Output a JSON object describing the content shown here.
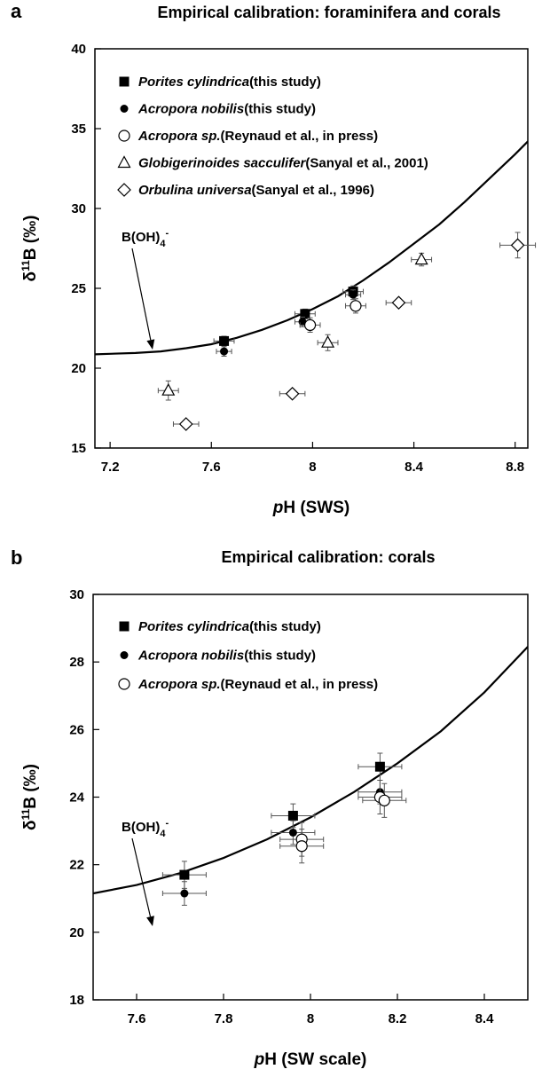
{
  "chart_data": [
    {
      "type": "scatter",
      "panel": "a",
      "title": "Empirical calibration: foraminifera and corals",
      "xlabel": [
        "p",
        "H (SWS)"
      ],
      "ylabel": [
        "δ",
        "11",
        "B (‰)"
      ],
      "xlim": [
        7.14,
        8.85
      ],
      "ylim": [
        15,
        40
      ],
      "xticks": [
        7.2,
        7.6,
        8,
        8.4,
        8.8
      ],
      "yticks": [
        15,
        20,
        25,
        30,
        35,
        40
      ],
      "series": [
        {
          "name": "Porites cylindrica",
          "source": "(this study)",
          "marker": "square",
          "color": "#000000",
          "x": [
            7.65,
            7.97,
            8.16
          ],
          "y": [
            21.7,
            23.4,
            24.8
          ],
          "xerr": [
            0.04,
            0.04,
            0.04
          ],
          "yerr": [
            0.3,
            0.3,
            0.35
          ]
        },
        {
          "name": "Acropora nobilis",
          "source": "(this study)",
          "marker": "circle",
          "color": "#000000",
          "x": [
            7.65,
            7.96,
            8.16
          ],
          "y": [
            21.05,
            22.9,
            24.6
          ],
          "xerr": [
            0.03,
            0.03,
            0.03
          ],
          "yerr": [
            0.3,
            0.3,
            0.3
          ]
        },
        {
          "name": "Acropora sp.",
          "source": "(Reynaud et al., in press)",
          "marker": "open-circle",
          "color": "#000000",
          "x": [
            7.99,
            8.17
          ],
          "y": [
            22.7,
            23.9
          ],
          "xerr": [
            0.04,
            0.04
          ],
          "yerr": [
            0.45,
            0.45
          ]
        },
        {
          "name": "Globigerinoides sacculifer",
          "source": "(Sanyal et al., 2001)",
          "marker": "triangle",
          "color": "#000000",
          "x": [
            7.43,
            8.06,
            8.43
          ],
          "y": [
            18.6,
            21.6,
            26.8
          ],
          "xerr": [
            0.04,
            0.04,
            0.04
          ],
          "yerr": [
            0.6,
            0.5,
            0.4
          ]
        },
        {
          "name": "Orbulina universa",
          "source": "(Sanyal et al., 1996)",
          "marker": "diamond",
          "color": "#000000",
          "x": [
            7.5,
            7.92,
            8.34,
            8.81
          ],
          "y": [
            16.5,
            18.4,
            24.1,
            27.7
          ],
          "xerr": [
            0.05,
            0.05,
            0.05,
            0.07
          ],
          "yerr": [
            0.15,
            0.15,
            0.15,
            0.8
          ]
        }
      ],
      "curve": {
        "x": [
          7.1,
          7.2,
          7.3,
          7.4,
          7.5,
          7.6,
          7.7,
          7.8,
          7.9,
          8.0,
          8.1,
          8.2,
          8.3,
          8.4,
          8.5,
          8.6,
          8.7,
          8.8,
          8.9
        ],
        "y": [
          20.85,
          20.9,
          20.95,
          21.05,
          21.25,
          21.5,
          21.9,
          22.4,
          23.0,
          23.7,
          24.5,
          25.5,
          26.6,
          27.8,
          29.0,
          30.4,
          31.9,
          33.4,
          35.0
        ]
      },
      "annotation": [
        "B(OH)",
        "4",
        "-"
      ]
    },
    {
      "type": "scatter",
      "panel": "b",
      "title": "Empirical calibration: corals",
      "xlabel": [
        "p",
        "H (SW scale)"
      ],
      "ylabel": [
        "δ",
        "11",
        "B (‰)"
      ],
      "xlim": [
        7.5,
        8.5
      ],
      "ylim": [
        18,
        30
      ],
      "xticks": [
        7.6,
        7.8,
        8,
        8.2,
        8.4
      ],
      "yticks": [
        18,
        20,
        22,
        24,
        26,
        28,
        30
      ],
      "series": [
        {
          "name": "Porites cylindrica",
          "source": "(this study)",
          "marker": "square",
          "color": "#000000",
          "x": [
            7.71,
            7.96,
            8.16
          ],
          "y": [
            21.7,
            23.45,
            24.9
          ],
          "xerr": [
            0.05,
            0.05,
            0.05
          ],
          "yerr": [
            0.4,
            0.35,
            0.4
          ]
        },
        {
          "name": "Acropora nobilis",
          "source": "(this study)",
          "marker": "circle",
          "color": "#000000",
          "x": [
            7.71,
            7.96,
            8.16
          ],
          "y": [
            21.15,
            22.95,
            24.15
          ],
          "xerr": [
            0.05,
            0.05,
            0.05
          ],
          "yerr": [
            0.35,
            0.35,
            0.35
          ]
        },
        {
          "name": "Acropora sp.",
          "source": "(Reynaud et al., in press)",
          "marker": "open-circle",
          "color": "#000000",
          "x": [
            7.98,
            7.98,
            8.16,
            8.17
          ],
          "y": [
            22.75,
            22.55,
            24.0,
            23.9
          ],
          "xerr": [
            0.05,
            0.05,
            0.05,
            0.05
          ],
          "yerr": [
            0.5,
            0.5,
            0.5,
            0.5
          ]
        }
      ],
      "curve": {
        "x": [
          7.5,
          7.6,
          7.7,
          7.8,
          7.9,
          8.0,
          8.1,
          8.2,
          8.3,
          8.4,
          8.5
        ],
        "y": [
          21.15,
          21.4,
          21.75,
          22.2,
          22.75,
          23.4,
          24.15,
          25.0,
          25.95,
          27.1,
          28.45
        ]
      },
      "annotation": [
        "B(OH)",
        "4",
        "-"
      ]
    }
  ]
}
